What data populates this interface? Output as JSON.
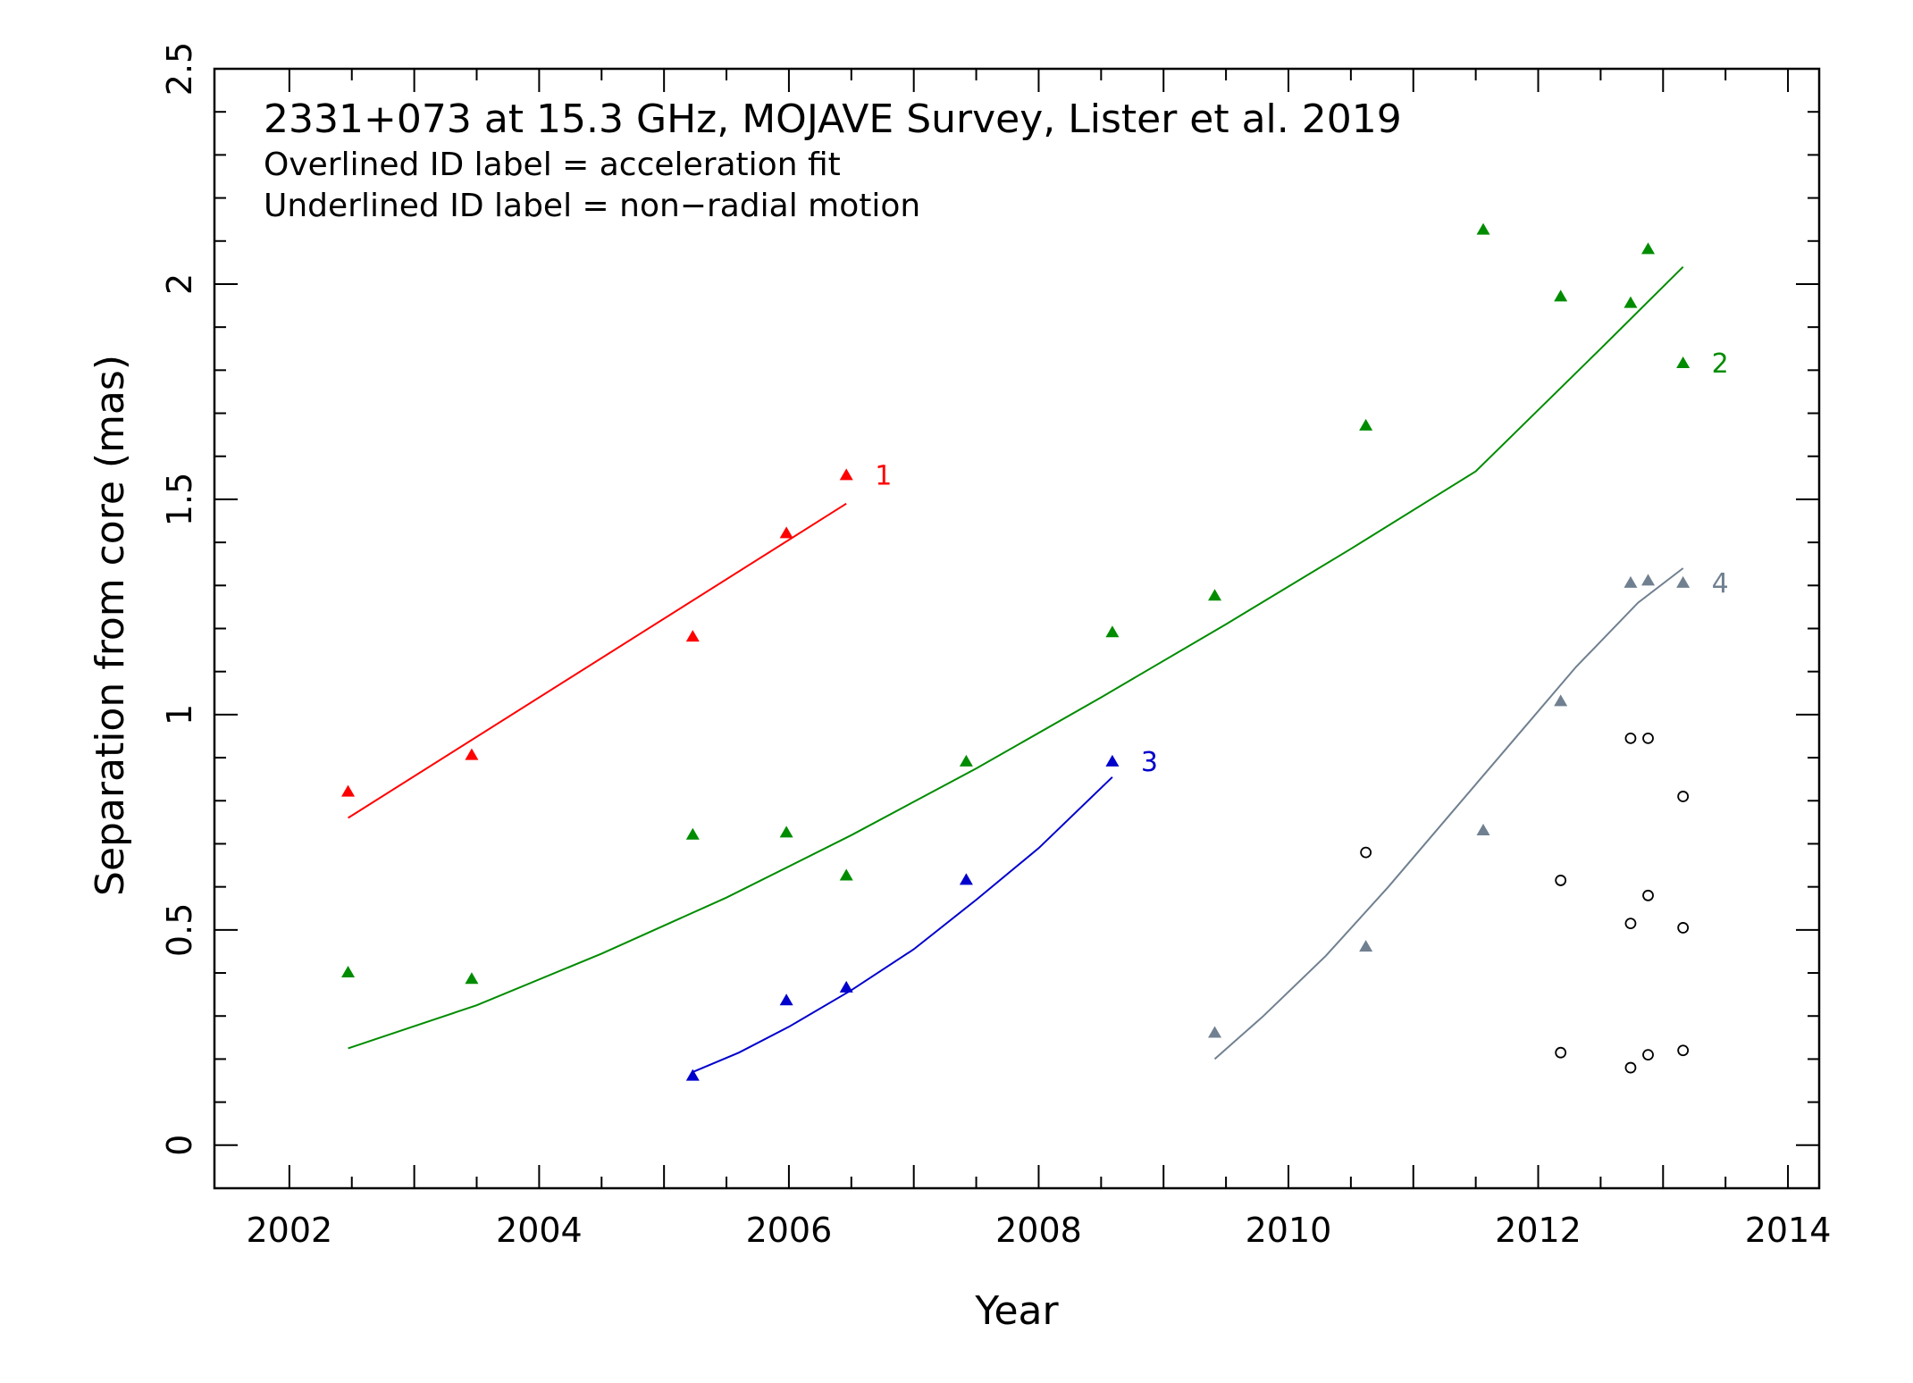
{
  "chart_data": {
    "type": "scatter",
    "title": "2331+073 at 15.3 GHz, MOJAVE Survey, Lister et al. 2019",
    "notes": [
      "Overlined ID label = acceleration fit",
      "Underlined ID label = non−radial motion"
    ],
    "xlabel": "Year",
    "ylabel": "Separation from core (mas)",
    "xlim": [
      2001.4,
      2014.25
    ],
    "ylim": [
      -0.1,
      2.5
    ],
    "xticks": [
      2002,
      2004,
      2006,
      2008,
      2010,
      2012,
      2014
    ],
    "xtick_labels": [
      "2002",
      "2004",
      "2006",
      "2008",
      "2010",
      "2012",
      "2014"
    ],
    "yticks": [
      0,
      0.5,
      1,
      1.5,
      2,
      2.5
    ],
    "ytick_labels": [
      "0",
      "0.5",
      "1",
      "1.5",
      "2",
      "2.5"
    ],
    "grid": false,
    "series": [
      {
        "name": "1",
        "color": "#ff0000",
        "marker": "triangle",
        "x": [
          2002.47,
          2003.46,
          2005.23,
          2005.98,
          2006.46
        ],
        "y": [
          0.82,
          0.905,
          1.18,
          1.42,
          1.555
        ],
        "fit": [
          [
            2002.47,
            0.76
          ],
          [
            2006.46,
            1.49
          ]
        ]
      },
      {
        "name": "2",
        "color": "#008c00",
        "marker": "triangle",
        "x": [
          2002.47,
          2003.46,
          2005.23,
          2005.98,
          2006.46,
          2007.42,
          2008.59,
          2009.41,
          2010.62,
          2011.56,
          2012.18,
          2012.74,
          2012.88,
          2013.16
        ],
        "y": [
          0.4,
          0.385,
          0.72,
          0.725,
          0.625,
          0.89,
          1.19,
          1.275,
          1.67,
          2.125,
          1.97,
          1.955,
          2.08,
          1.815
        ],
        "fit": [
          [
            2002.47,
            0.225
          ],
          [
            2003.5,
            0.325
          ],
          [
            2004.5,
            0.445
          ],
          [
            2005.5,
            0.575
          ],
          [
            2006.5,
            0.72
          ],
          [
            2007.5,
            0.875
          ],
          [
            2008.5,
            1.04
          ],
          [
            2009.5,
            1.21
          ],
          [
            2010.5,
            1.385
          ],
          [
            2011.5,
            1.565
          ],
          [
            2012.5,
            1.85
          ],
          [
            2013.16,
            2.04
          ]
        ]
      },
      {
        "name": "3",
        "color": "#0000cc",
        "marker": "triangle",
        "x": [
          2005.23,
          2005.98,
          2006.46,
          2007.42,
          2008.59
        ],
        "y": [
          0.16,
          0.335,
          0.365,
          0.615,
          0.89
        ],
        "fit": [
          [
            2005.23,
            0.17
          ],
          [
            2005.6,
            0.215
          ],
          [
            2006.0,
            0.275
          ],
          [
            2006.5,
            0.36
          ],
          [
            2007.0,
            0.455
          ],
          [
            2007.5,
            0.57
          ],
          [
            2008.0,
            0.69
          ],
          [
            2008.59,
            0.855
          ]
        ]
      },
      {
        "name": "4",
        "color": "#708090",
        "marker": "triangle",
        "x": [
          2009.41,
          2010.62,
          2011.56,
          2012.18,
          2012.74,
          2012.88,
          2013.16
        ],
        "y": [
          0.26,
          0.46,
          0.73,
          1.03,
          1.305,
          1.31,
          1.305
        ],
        "fit": [
          [
            2009.41,
            0.2
          ],
          [
            2009.8,
            0.3
          ],
          [
            2010.3,
            0.44
          ],
          [
            2010.8,
            0.6
          ],
          [
            2011.3,
            0.77
          ],
          [
            2011.8,
            0.94
          ],
          [
            2012.3,
            1.11
          ],
          [
            2012.8,
            1.26
          ],
          [
            2013.16,
            1.34
          ]
        ]
      },
      {
        "name": "",
        "color": "#000000",
        "marker": "open-circle",
        "x": [
          2010.62,
          2012.18,
          2012.18,
          2012.74,
          2012.74,
          2012.74,
          2012.88,
          2012.88,
          2012.88,
          2013.16,
          2013.16,
          2013.16
        ],
        "y": [
          0.68,
          0.615,
          0.215,
          0.945,
          0.515,
          0.18,
          0.945,
          0.58,
          0.21,
          0.81,
          0.505,
          0.22
        ]
      }
    ]
  }
}
